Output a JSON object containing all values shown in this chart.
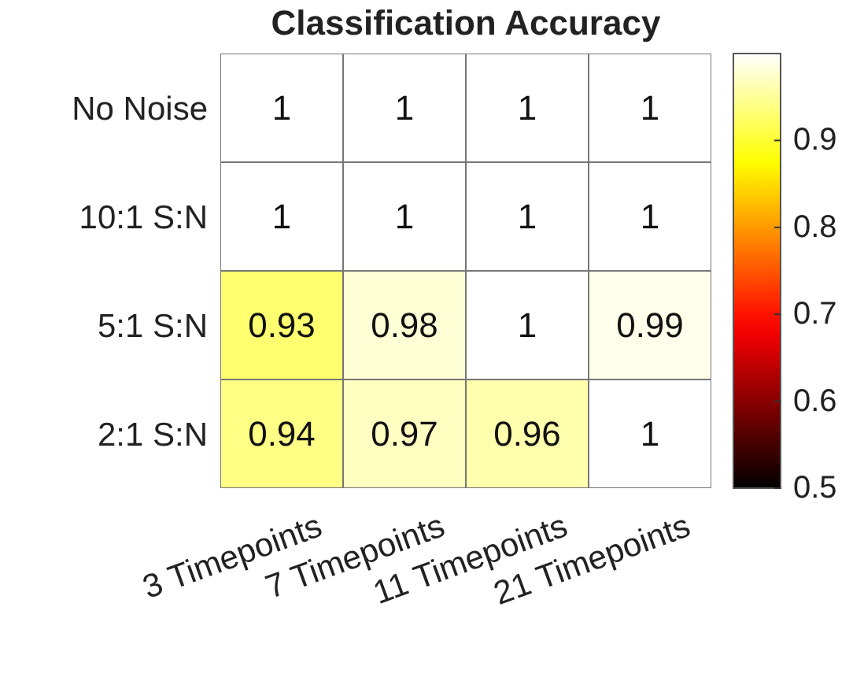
{
  "chart_data": {
    "type": "heatmap",
    "title": "Classification Accuracy",
    "categories": [
      "3 Timepoints",
      "7 Timepoints",
      "11 Timepoints",
      "21 Timepoints"
    ],
    "y_categories": [
      "No Noise",
      "10:1 S:N",
      "5:1 S:N",
      "2:1 S:N"
    ],
    "cells": [
      [
        1,
        1,
        1,
        1
      ],
      [
        1,
        1,
        1,
        1
      ],
      [
        0.93,
        0.98,
        1,
        0.99
      ],
      [
        0.94,
        0.97,
        0.96,
        1
      ]
    ],
    "data_labels": true,
    "clim": [
      0.5,
      1
    ],
    "cticks": [
      0.5,
      0.6,
      0.7,
      0.8,
      0.9
    ]
  }
}
